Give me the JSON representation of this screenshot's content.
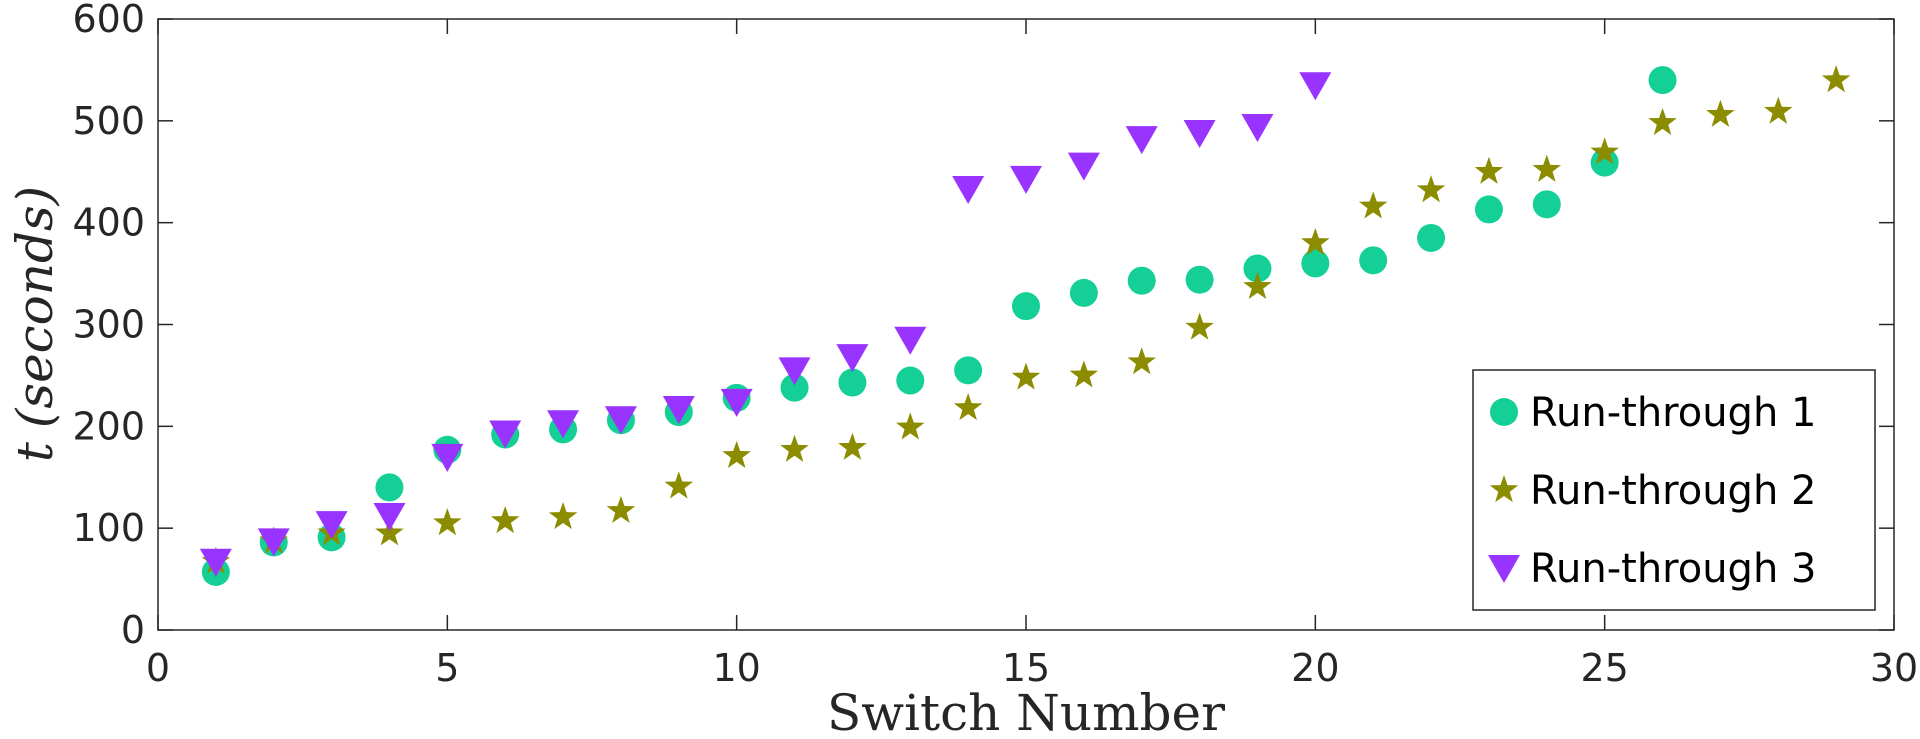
{
  "chart_data": {
    "type": "scatter",
    "title": "",
    "xlabel": "Switch Number",
    "ylabel_italic": "t",
    "ylabel_unit": "(seconds)",
    "xlim": [
      0,
      30
    ],
    "ylim": [
      0,
      600
    ],
    "xticks": [
      0,
      5,
      10,
      15,
      20,
      25,
      30
    ],
    "yticks": [
      0,
      100,
      200,
      300,
      400,
      500,
      600
    ],
    "grid": false,
    "legend_position": "bottom-right",
    "series": [
      {
        "name": "Run-through 1",
        "marker": "circle",
        "color": "#14cf96",
        "x": [
          1,
          2,
          3,
          4,
          5,
          6,
          7,
          8,
          9,
          10,
          11,
          12,
          13,
          14,
          15,
          16,
          17,
          18,
          19,
          20,
          21,
          22,
          23,
          24,
          25,
          26
        ],
        "y": [
          57,
          86,
          91,
          140,
          177,
          192,
          197,
          206,
          214,
          228,
          238,
          243,
          245,
          255,
          318,
          331,
          343,
          344,
          355,
          360,
          363,
          385,
          413,
          418,
          459,
          540
        ]
      },
      {
        "name": "Run-through 2",
        "marker": "star",
        "color": "#8c8c00",
        "x": [
          1,
          2,
          3,
          4,
          5,
          6,
          7,
          8,
          9,
          10,
          11,
          12,
          13,
          14,
          15,
          16,
          17,
          18,
          19,
          20,
          21,
          22,
          23,
          24,
          25,
          26,
          27,
          28,
          29
        ],
        "y": [
          67,
          87,
          95,
          95,
          105,
          107,
          111,
          117,
          141,
          171,
          177,
          179,
          199,
          218,
          248,
          250,
          263,
          297,
          337,
          380,
          416,
          432,
          450,
          452,
          469,
          498,
          506,
          509,
          540
        ]
      },
      {
        "name": "Run-through 3",
        "marker": "triangle-down",
        "color": "#9933ff",
        "x": [
          1,
          2,
          3,
          4,
          5,
          6,
          7,
          8,
          9,
          10,
          11,
          12,
          13,
          14,
          15,
          16,
          17,
          18,
          19,
          20
        ],
        "y": [
          67,
          87,
          104,
          112,
          170,
          193,
          203,
          207,
          217,
          224,
          255,
          268,
          285,
          433,
          443,
          456,
          482,
          488,
          494,
          535
        ]
      }
    ]
  }
}
